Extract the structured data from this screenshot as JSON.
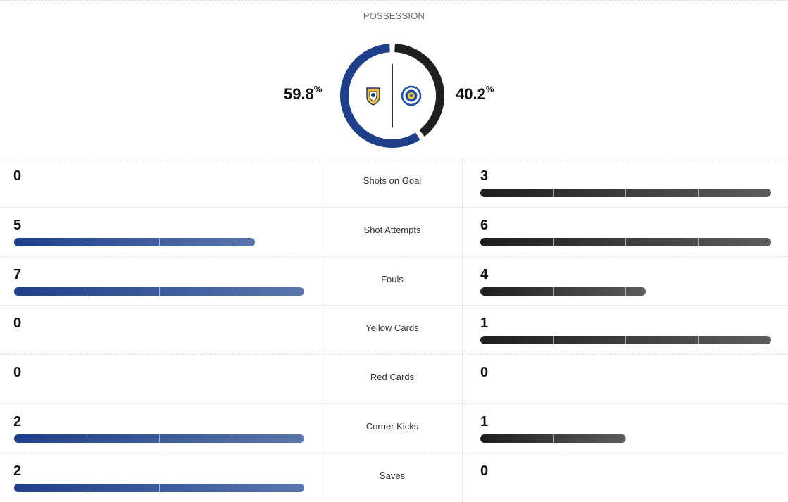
{
  "possession": {
    "label": "POSSESSION",
    "home_pct": "59.8",
    "away_pct": "40.2",
    "pct_symbol": "%",
    "home_value": 59.8,
    "away_value": 40.2,
    "home_color": "#1e3f8a",
    "away_color": "#1f1f1f",
    "home_crest_icon": "leeds-united-crest-icon",
    "away_crest_icon": "leicester-city-crest-icon"
  },
  "stats": [
    {
      "label": "Shots on Goal",
      "home": "0",
      "away": "3",
      "home_fill": 0,
      "away_fill": 1.0
    },
    {
      "label": "Shot Attempts",
      "home": "5",
      "away": "6",
      "home_fill": 0.83,
      "away_fill": 1.0
    },
    {
      "label": "Fouls",
      "home": "7",
      "away": "4",
      "home_fill": 1.0,
      "away_fill": 0.57
    },
    {
      "label": "Yellow Cards",
      "home": "0",
      "away": "1",
      "home_fill": 0,
      "away_fill": 1.0
    },
    {
      "label": "Red Cards",
      "home": "0",
      "away": "0",
      "home_fill": 0,
      "away_fill": 0
    },
    {
      "label": "Corner Kicks",
      "home": "2",
      "away": "1",
      "home_fill": 1.0,
      "away_fill": 0.5
    },
    {
      "label": "Saves",
      "home": "2",
      "away": "0",
      "home_fill": 1.0,
      "away_fill": 0
    }
  ]
}
